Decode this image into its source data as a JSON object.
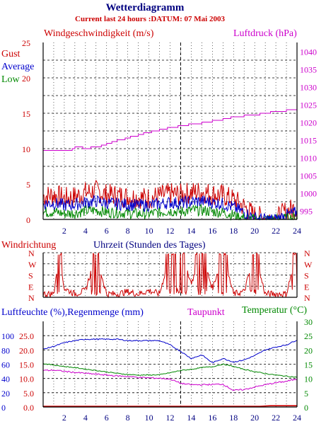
{
  "header": {
    "title": "Wetterdiagramm",
    "subtitle": "Current last 24 hours :DATUM: 07 Mai 2003"
  },
  "colors": {
    "gust": "#cc0000",
    "average": "#0000cc",
    "low": "#008800",
    "pressure": "#cc00cc",
    "direction": "#cc0000",
    "humidity": "#0000cc",
    "rain": "#cc0000",
    "dewpoint": "#cc00cc",
    "temperature": "#008800",
    "axis_left": "#cc0000",
    "axis_right": "#cc00cc",
    "axis_x": "#000080"
  },
  "chart_data": [
    {
      "type": "line",
      "title": "",
      "ylabel": "Windgeschwindigkeit (m/s)",
      "y2label": "Luftdruck (hPa)",
      "xlim": [
        0,
        24
      ],
      "ylim": [
        0,
        25
      ],
      "y2lim": [
        992.5,
        1042.5
      ],
      "x_ticks": [
        "2",
        "4",
        "6",
        "8",
        "10",
        "12",
        "14",
        "16",
        "18",
        "20",
        "22",
        "24"
      ],
      "y_ticks": [
        "0",
        "5",
        "10",
        "15",
        "20",
        "25"
      ],
      "y2_ticks": [
        "995",
        "1000",
        "1005",
        "1010",
        "1015",
        "1020",
        "1025",
        "1030",
        "1035",
        "1040"
      ],
      "legend": [
        "Gust",
        "Average",
        "Low"
      ],
      "grid": true,
      "series": [
        {
          "name": "Gust",
          "x": [
            0,
            1,
            2,
            3,
            4,
            5,
            6,
            7,
            8,
            9,
            10,
            11,
            12,
            13,
            14,
            15,
            16,
            17,
            18,
            19,
            20,
            21,
            22,
            23,
            24
          ],
          "values": [
            3.3,
            3.5,
            3.0,
            3.2,
            3.8,
            4.0,
            3.5,
            3.4,
            3.2,
            3.1,
            3.0,
            3.3,
            3.6,
            3.5,
            3.8,
            3.9,
            3.6,
            3.4,
            2.8,
            1.8,
            0.5,
            0.2,
            0.0,
            1.2,
            1.6
          ]
        },
        {
          "name": "Average",
          "x": [
            0,
            1,
            2,
            3,
            4,
            5,
            6,
            7,
            8,
            9,
            10,
            11,
            12,
            13,
            14,
            15,
            16,
            17,
            18,
            19,
            20,
            21,
            22,
            23,
            24
          ],
          "values": [
            2.2,
            2.3,
            2.0,
            2.1,
            2.4,
            2.6,
            2.3,
            2.2,
            2.1,
            2.0,
            2.0,
            2.2,
            2.4,
            2.3,
            2.5,
            2.6,
            2.4,
            2.2,
            1.7,
            1.0,
            0.2,
            0.0,
            0.0,
            0.6,
            1.0
          ]
        },
        {
          "name": "Low",
          "x": [
            0,
            1,
            2,
            3,
            4,
            5,
            6,
            7,
            8,
            9,
            10,
            11,
            12,
            13,
            14,
            15,
            16,
            17,
            18,
            19,
            20,
            21,
            22,
            23,
            24
          ],
          "values": [
            1.0,
            1.1,
            0.8,
            0.9,
            1.2,
            1.3,
            1.0,
            1.0,
            0.9,
            0.8,
            0.8,
            1.0,
            1.2,
            1.1,
            1.3,
            1.3,
            1.1,
            1.0,
            0.6,
            0.2,
            0.0,
            0.0,
            0.0,
            0.1,
            0.3
          ]
        },
        {
          "name": "Luftdruck",
          "x": [
            0,
            2.5,
            3,
            4,
            5,
            6,
            7,
            8,
            9,
            10,
            11,
            12,
            13,
            14,
            15,
            16,
            17,
            18,
            19,
            20,
            21,
            22,
            23,
            24
          ],
          "values": [
            1012.0,
            1012.0,
            1013.0,
            1012.5,
            1013.0,
            1013.8,
            1014.8,
            1015.6,
            1016.4,
            1017.2,
            1017.8,
            1018.4,
            1019.0,
            1019.4,
            1019.8,
            1020.3,
            1020.8,
            1021.5,
            1021.8,
            1022.0,
            1022.5,
            1023.0,
            1023.3,
            1023.7
          ]
        }
      ]
    },
    {
      "type": "line",
      "title": "",
      "ylabel": "Windrichtung",
      "xlabel": "Uhrzeit (Stunden des Tages)",
      "xlim": [
        0,
        24
      ],
      "y_ticks": [
        "N",
        "W",
        "S",
        "E",
        "N"
      ],
      "grid": true,
      "series": [
        {
          "name": "Windrichtung",
          "x": [
            0,
            1,
            1.5,
            2,
            3,
            4,
            5,
            6,
            7,
            8,
            9,
            10,
            11,
            12,
            13,
            14,
            15,
            16,
            17,
            18,
            19,
            20,
            21,
            22,
            23,
            24
          ],
          "values": [
            0,
            0,
            3.5,
            0.5,
            0,
            0.3,
            3.5,
            0,
            0,
            0.2,
            0,
            0.3,
            0,
            3.5,
            3.5,
            1,
            3.5,
            0.5,
            3.5,
            0,
            0.2,
            3.5,
            0,
            0,
            0,
            3.8
          ]
        }
      ]
    },
    {
      "type": "line",
      "title": "",
      "ylabel": "Luftfeuchte (%),Regenmenge (mm)",
      "y2label": "Temperatur (°C)",
      "xlim": [
        0,
        24
      ],
      "ylim": [
        0,
        120
      ],
      "y2lim": [
        0,
        30
      ],
      "x_ticks": [
        "2",
        "4",
        "6",
        "8",
        "10",
        "12",
        "14",
        "16",
        "18",
        "20",
        "22",
        "24"
      ],
      "y_ticks": [
        "0",
        "20",
        "40",
        "60",
        "80",
        "100"
      ],
      "rain_ticks": [
        "0.0",
        "5.0",
        "10.0",
        "15.0",
        "20.0",
        "25.0"
      ],
      "y2_ticks": [
        "0",
        "5",
        "10",
        "15",
        "20",
        "25",
        "30"
      ],
      "legend": [
        "Taupunkt",
        "Temperatur (°C)"
      ],
      "grid": true,
      "series": [
        {
          "name": "Luftfeuchte",
          "x": [
            0,
            1,
            2,
            3,
            4,
            5,
            6,
            7,
            8,
            9,
            10,
            11,
            12,
            13,
            14,
            15,
            16,
            17,
            18,
            19,
            20,
            21,
            22,
            23,
            24
          ],
          "values": [
            81,
            85,
            90,
            93,
            95,
            95,
            95,
            95,
            93,
            93,
            93,
            93,
            87,
            78,
            68,
            73,
            62,
            68,
            63,
            66,
            72,
            80,
            84,
            87,
            94
          ]
        },
        {
          "name": "Regenmenge",
          "x": [
            0,
            20.5,
            21.5,
            24
          ],
          "values": [
            0.0,
            0.0,
            0.2,
            0.2
          ]
        },
        {
          "name": "Taupunkt",
          "x": [
            0,
            1,
            2,
            3,
            4,
            5,
            6,
            7,
            8,
            9,
            10,
            11,
            12,
            13,
            14,
            15,
            16,
            17,
            18,
            19,
            20,
            21,
            22,
            23,
            24
          ],
          "values": [
            12.8,
            12.9,
            12.5,
            12.1,
            11.8,
            11.5,
            11.2,
            10.9,
            10.7,
            10.4,
            10.2,
            10.1,
            9.8,
            8.3,
            7.8,
            7.8,
            7.9,
            8.0,
            5.8,
            6.1,
            7.0,
            7.8,
            8.5,
            9.0,
            9.8
          ]
        },
        {
          "name": "Temperatur",
          "x": [
            0,
            1,
            2,
            3,
            4,
            5,
            6,
            7,
            8,
            9,
            10,
            11,
            12,
            13,
            14,
            15,
            16,
            17,
            18,
            19,
            20,
            21,
            22,
            23,
            24
          ],
          "values": [
            15.2,
            14.7,
            14.2,
            13.8,
            13.3,
            12.8,
            12.3,
            11.8,
            11.4,
            11.2,
            11.2,
            11.3,
            12.0,
            12.8,
            13.2,
            13.8,
            14.1,
            15.0,
            14.2,
            13.2,
            12.4,
            11.7,
            11.2,
            10.8,
            10.4
          ]
        }
      ]
    }
  ]
}
